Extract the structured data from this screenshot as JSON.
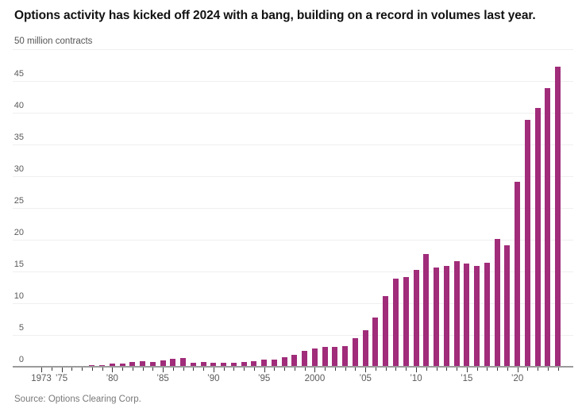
{
  "header": {
    "title": "Options activity has kicked off 2024 with a bang, building on a record in volumes last year."
  },
  "footer": {
    "source": "Source: Options Clearing Corp."
  },
  "chart_data": {
    "type": "bar",
    "title": "Options activity has kicked off 2024 with a bang, building on a record in volumes last year.",
    "unit_label": "50 million contracts",
    "ylabel": "million contracts",
    "ylim": [
      0,
      50
    ],
    "grid": true,
    "legend_position": "none",
    "bar_color": "#a02c7a",
    "y_ticks": [
      0,
      5,
      10,
      15,
      20,
      25,
      30,
      35,
      40,
      45
    ],
    "x_tick_labels": [
      {
        "year": 1973,
        "label": "1973"
      },
      {
        "year": 1975,
        "label": "’75"
      },
      {
        "year": 1980,
        "label": "’80"
      },
      {
        "year": 1985,
        "label": "’85"
      },
      {
        "year": 1990,
        "label": "’90"
      },
      {
        "year": 1995,
        "label": "’95"
      },
      {
        "year": 2000,
        "label": "2000"
      },
      {
        "year": 2005,
        "label": "’05"
      },
      {
        "year": 2010,
        "label": "’10"
      },
      {
        "year": 2015,
        "label": "’15"
      },
      {
        "year": 2020,
        "label": "’20"
      }
    ],
    "categories": [
      1973,
      1974,
      1975,
      1976,
      1977,
      1978,
      1979,
      1980,
      1981,
      1982,
      1983,
      1984,
      1985,
      1986,
      1987,
      1988,
      1989,
      1990,
      1991,
      1992,
      1993,
      1994,
      1995,
      1996,
      1997,
      1998,
      1999,
      2000,
      2001,
      2002,
      2003,
      2004,
      2005,
      2006,
      2007,
      2008,
      2009,
      2010,
      2011,
      2012,
      2013,
      2014,
      2015,
      2016,
      2017,
      2018,
      2019,
      2020,
      2021,
      2022,
      2023,
      2024
    ],
    "values": [
      0.03,
      0.05,
      0.08,
      0.1,
      0.13,
      0.25,
      0.25,
      0.5,
      0.5,
      0.7,
      0.9,
      0.75,
      0.95,
      1.2,
      1.4,
      0.6,
      0.75,
      0.65,
      0.65,
      0.65,
      0.8,
      0.9,
      1.1,
      1.15,
      1.5,
      1.9,
      2.5,
      2.9,
      3.1,
      3.1,
      3.3,
      4.5,
      5.7,
      7.7,
      11.1,
      13.9,
      14.1,
      15.2,
      17.8,
      15.6,
      15.9,
      16.6,
      16.2,
      15.9,
      16.4,
      20.1,
      19.1,
      29.1,
      38.9,
      40.7,
      43.9,
      47.3
    ]
  }
}
